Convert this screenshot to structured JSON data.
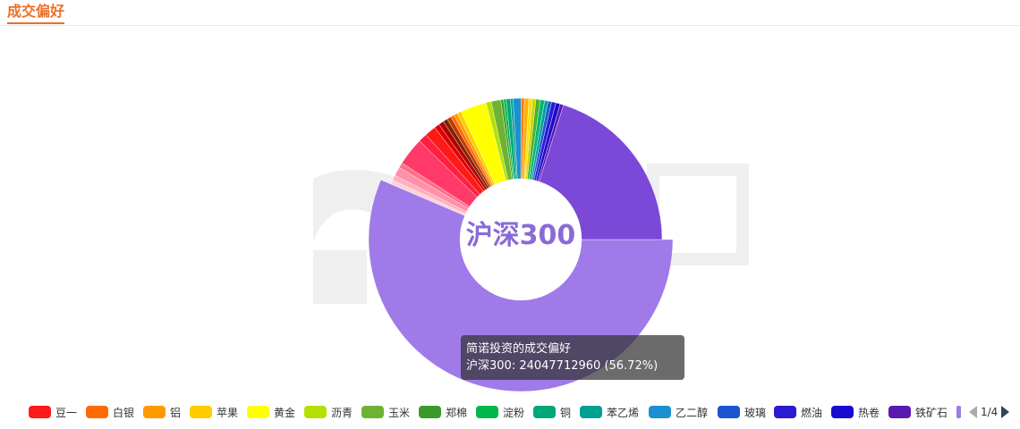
{
  "header": {
    "title": "成交偏好"
  },
  "center_label": "沪深300",
  "tooltip": {
    "title": "简诺投资的成交偏好",
    "line": "沪深300: 24047712960 (56.72%)"
  },
  "legend": {
    "items": [
      {
        "label": "豆一",
        "color": "#ff1a1a"
      },
      {
        "label": "白银",
        "color": "#ff6a00"
      },
      {
        "label": "铝",
        "color": "#ff9900"
      },
      {
        "label": "苹果",
        "color": "#ffcc00"
      },
      {
        "label": "黄金",
        "color": "#ffff00"
      },
      {
        "label": "沥青",
        "color": "#b3e000"
      },
      {
        "label": "玉米",
        "color": "#6db333"
      },
      {
        "label": "郑棉",
        "color": "#3a9a2a"
      },
      {
        "label": "淀粉",
        "color": "#00b84a"
      },
      {
        "label": "铜",
        "color": "#00a878"
      },
      {
        "label": "苯乙烯",
        "color": "#00a090"
      },
      {
        "label": "乙二醇",
        "color": "#1a90d0"
      },
      {
        "label": "玻璃",
        "color": "#1a55d0"
      },
      {
        "label": "燃油",
        "color": "#2a1ad0"
      },
      {
        "label": "热卷",
        "color": "#1a0ad0"
      },
      {
        "label": "铁矿石",
        "color": "#5a1ab0"
      }
    ],
    "page": "1/4"
  },
  "chart_data": {
    "type": "pie",
    "title": "成交偏好",
    "highlighted": "沪深300",
    "slices": [
      {
        "name": "沪深300",
        "value": 56.72,
        "color": "#9f7ae8"
      },
      {
        "name": "",
        "value": 0.5,
        "color": "#ffd0d8"
      },
      {
        "name": "",
        "value": 0.6,
        "color": "#ffb0c0"
      },
      {
        "name": "",
        "value": 1.0,
        "color": "#ff90a8"
      },
      {
        "name": "",
        "value": 0.6,
        "color": "#ff7088"
      },
      {
        "name": "",
        "value": 3.2,
        "color": "#ff3a6a"
      },
      {
        "name": "",
        "value": 1.0,
        "color": "#ff2040"
      },
      {
        "name": "豆一",
        "value": 1.3,
        "color": "#ff1a1a"
      },
      {
        "name": "",
        "value": 0.6,
        "color": "#e00000"
      },
      {
        "name": "",
        "value": 0.6,
        "color": "#b00000"
      },
      {
        "name": "",
        "value": 0.5,
        "color": "#802000"
      },
      {
        "name": "",
        "value": 0.5,
        "color": "#c03a00"
      },
      {
        "name": "白银",
        "value": 0.4,
        "color": "#ff6a00"
      },
      {
        "name": "铝",
        "value": 0.4,
        "color": "#ff9900"
      },
      {
        "name": "苹果",
        "value": 0.5,
        "color": "#ffcc00"
      },
      {
        "name": "黄金",
        "value": 3.0,
        "color": "#ffff00"
      },
      {
        "name": "沥青",
        "value": 0.6,
        "color": "#b3e000"
      },
      {
        "name": "玉米",
        "value": 1.1,
        "color": "#6db333"
      },
      {
        "name": "郑棉",
        "value": 0.3,
        "color": "#3a9a2a"
      },
      {
        "name": "淀粉",
        "value": 0.3,
        "color": "#00b84a"
      },
      {
        "name": "铜",
        "value": 0.5,
        "color": "#00a878"
      },
      {
        "name": "苯乙烯",
        "value": 0.3,
        "color": "#00a090"
      },
      {
        "name": "乙二醇",
        "value": 0.9,
        "color": "#1a90d0"
      },
      {
        "name": "",
        "value": 0.4,
        "color": "#ff7a1a"
      },
      {
        "name": "",
        "value": 0.5,
        "color": "#ffb000"
      },
      {
        "name": "",
        "value": 0.4,
        "color": "#ffe000"
      },
      {
        "name": "",
        "value": 0.4,
        "color": "#c8d800"
      },
      {
        "name": "",
        "value": 0.5,
        "color": "#50b030"
      },
      {
        "name": "",
        "value": 0.5,
        "color": "#00b870"
      },
      {
        "name": "",
        "value": 0.4,
        "color": "#00a0a0"
      },
      {
        "name": "玻璃",
        "value": 0.4,
        "color": "#1a55d0"
      },
      {
        "name": "燃油",
        "value": 0.5,
        "color": "#2a1ad0"
      },
      {
        "name": "热卷",
        "value": 0.5,
        "color": "#1a0ad0"
      },
      {
        "name": "铁矿石",
        "value": 0.4,
        "color": "#5a1ab0"
      },
      {
        "name": "",
        "value": 20.2,
        "color": "#7b48d8"
      }
    ]
  }
}
